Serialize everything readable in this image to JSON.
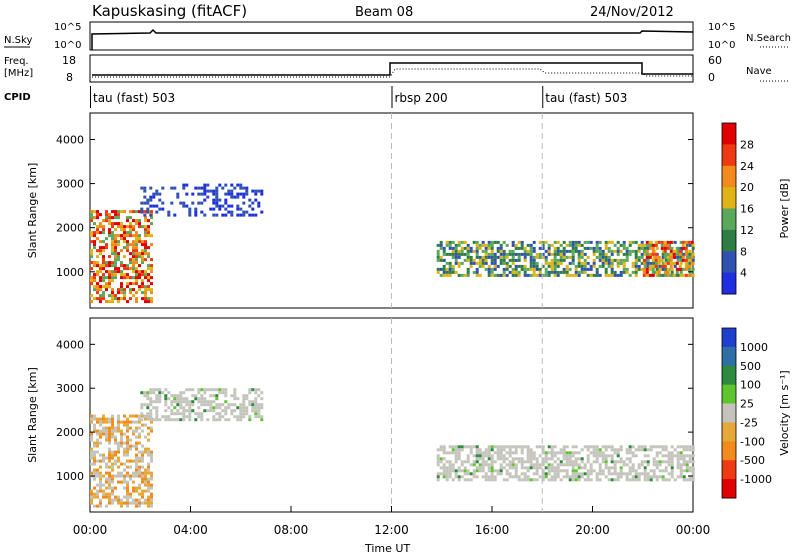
{
  "header": {
    "station": "Kapuskasing (fitACF)",
    "beam": "Beam 08",
    "date": "24/Nov/2012"
  },
  "sky_panel": {
    "left_label": "N.Sky",
    "left_ticks": [
      "10^5",
      "10^0"
    ],
    "right_label": "N.Search",
    "right_ticks": [
      "10^5",
      "10^0"
    ]
  },
  "freq_panel": {
    "left_label_1": "Freq.",
    "left_label_2": "[MHz]",
    "left_ticks": [
      "18",
      "8"
    ],
    "right_label": "Nave",
    "right_ticks": [
      "60",
      "0"
    ]
  },
  "cpid": {
    "label": "CPID",
    "segments": [
      {
        "name": "tau (fast) 503",
        "start_hour": 0
      },
      {
        "name": "rbsp 200",
        "start_hour": 12
      },
      {
        "name": "tau (fast) 503",
        "start_hour": 18
      }
    ]
  },
  "colors": {
    "power": [
      "#1f2fe0",
      "#2f52b0",
      "#2e7d45",
      "#5aa85a",
      "#e0b416",
      "#f28a1c",
      "#ee3a12",
      "#e00000"
    ],
    "velocity_neg": [
      "#e00000",
      "#ee3a12",
      "#f28a1c",
      "#e7a83a"
    ],
    "velocity_ground": "#c4c4bc",
    "velocity_pos": [
      "#5fc52e",
      "#2e8a3f",
      "#2f6fa6",
      "#1f3fcf"
    ]
  },
  "chart_data": [
    {
      "type": "heatmap",
      "title": "Power",
      "ylabel": "Slant Range [km]",
      "ylim": [
        180,
        4600
      ],
      "yticks": [
        "1000",
        "2000",
        "3000",
        "4000"
      ],
      "xlim": [
        0,
        24
      ],
      "colorbar_label": "Power [dB]",
      "colorbar_ticks": [
        "28",
        "24",
        "20",
        "16",
        "12",
        "8",
        "4"
      ],
      "vlines_hours": [
        12,
        18
      ],
      "regions": [
        {
          "name": "early-echoes",
          "t": [
            0.0,
            2.5
          ],
          "range_km": [
            300,
            2400
          ],
          "level": "high"
        },
        {
          "name": "high-range-band",
          "t": [
            2.0,
            6.8
          ],
          "range_km": [
            2300,
            3000
          ],
          "level": "low"
        },
        {
          "name": "afternoon-band",
          "t": [
            13.8,
            24.0
          ],
          "range_km": [
            900,
            1700
          ],
          "level": "medium"
        },
        {
          "name": "late-strong",
          "t": [
            22.0,
            24.0
          ],
          "range_km": [
            900,
            1700
          ],
          "level": "high"
        }
      ]
    },
    {
      "type": "heatmap",
      "title": "Velocity",
      "ylabel": "Slant Range [km]",
      "ylim": [
        180,
        4600
      ],
      "yticks": [
        "1000",
        "2000",
        "3000",
        "4000"
      ],
      "xlim": [
        0,
        24
      ],
      "colorbar_label": "Velocity [m s⁻¹]",
      "colorbar_ticks": [
        "1000",
        "500",
        "100",
        "25",
        "-25",
        "-100",
        "-500",
        "-1000"
      ],
      "vlines_hours": [
        12,
        18
      ],
      "regions": [
        {
          "name": "early-echoes",
          "t": [
            0.0,
            2.5
          ],
          "range_km": [
            300,
            2400
          ],
          "level": "negative"
        },
        {
          "name": "high-range-band",
          "t": [
            2.0,
            6.8
          ],
          "range_km": [
            2300,
            3000
          ],
          "level": "ground"
        },
        {
          "name": "afternoon-band",
          "t": [
            13.8,
            24.0
          ],
          "range_km": [
            900,
            1700
          ],
          "level": "ground"
        }
      ]
    }
  ],
  "xaxis": {
    "ticks": [
      "00:00",
      "04:00",
      "08:00",
      "12:00",
      "16:00",
      "20:00",
      "00:00"
    ],
    "label": "Time UT"
  }
}
